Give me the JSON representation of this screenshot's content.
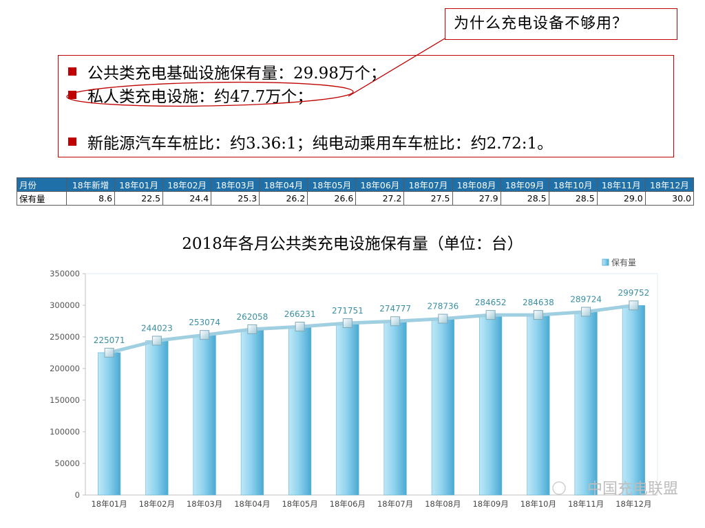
{
  "callout": {
    "text": "为什么充电设备不够用？"
  },
  "bullets": [
    "公共类充电基础设施保有量：29.98万个；",
    "私人类充电设施：约47.7万个；",
    "新能源汽车车桩比：约3.36:1；纯电动乘用车车桩比：约2.72:1。"
  ],
  "table": {
    "header": [
      "月份",
      "18年新增",
      "18年01月",
      "18年02月",
      "18年03月",
      "18年04月",
      "18年05月",
      "18年06月",
      "18年07月",
      "18年08月",
      "18年09月",
      "18年10月",
      "18年11月",
      "18年12月"
    ],
    "row": [
      "保有量",
      "8.6",
      "22.5",
      "24.4",
      "25.3",
      "26.2",
      "26.6",
      "27.2",
      "27.5",
      "27.9",
      "28.5",
      "28.5",
      "29.0",
      "30.0"
    ]
  },
  "chart_data": {
    "type": "bar",
    "title": "2018年各月公共类充电设施保有量（单位：台）",
    "categories": [
      "18年01月",
      "18年02月",
      "18年03月",
      "18年04月",
      "18年05月",
      "18年06月",
      "18年07月",
      "18年08月",
      "18年09月",
      "18年10月",
      "18年11月",
      "18年12月"
    ],
    "series": [
      {
        "name": "保有量",
        "values": [
          225071,
          244023,
          253074,
          262058,
          266231,
          271751,
          274777,
          278736,
          284652,
          284638,
          289724,
          299752
        ]
      }
    ],
    "overlay_line": true,
    "ylim": [
      0,
      350000
    ],
    "yticks": [
      0,
      50000,
      100000,
      150000,
      200000,
      250000,
      300000,
      350000
    ],
    "grid": false,
    "legend": "top-right",
    "bar_color": "#7fcdec",
    "line_color": "#9fcfe0"
  },
  "watermark": "中国充电联盟",
  "colors": {
    "accent_red": "#c00000",
    "table_header": "#1f6fa8",
    "data_label": "#3a8fa0"
  }
}
